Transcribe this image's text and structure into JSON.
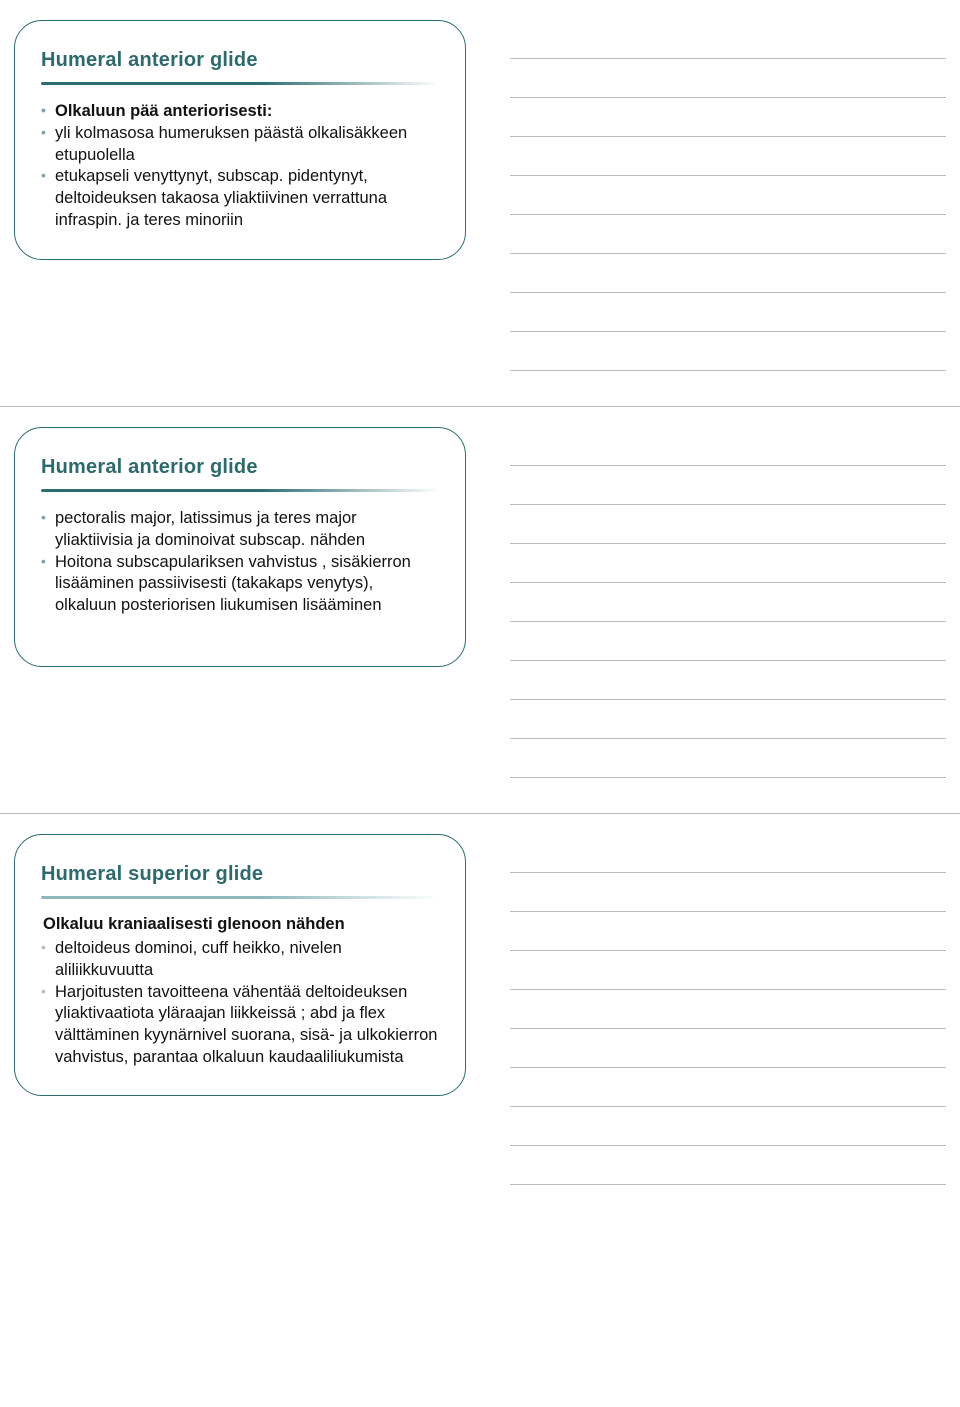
{
  "slides": [
    {
      "title": "Humeral anterior glide",
      "divider_color": "#2b6d72",
      "bullet_color": "#7aa4a8",
      "sub_head": null,
      "items": [
        {
          "text": "Olkaluun pää anteriorisesti:",
          "bold": true
        },
        {
          "text": "yli kolmasosa humeruksen päästä olkalisäkkeen etupuolella",
          "bold": false
        },
        {
          "text": "etukapseli venyttynyt, subscap. pidentynyt, deltoideuksen takaosa yliaktiivinen verrattuna infraspin. ja teres minoriin",
          "bold": false
        }
      ]
    },
    {
      "title": "Humeral anterior glide",
      "divider_color": "#2b6d72",
      "bullet_color": "#7aa4a8",
      "sub_head": null,
      "items": [
        {
          "text": "pectoralis major, latissimus ja teres major yliaktiivisia ja dominoivat subscap. nähden",
          "bold": false
        },
        {
          "text": "Hoitona subscapulariksen vahvistus , sisäkierron lisääminen passiivisesti (takakaps venytys), olkaluun posteriorisen liukumisen lisääminen",
          "bold": false
        }
      ]
    },
    {
      "title": "Humeral superior glide",
      "divider_color": "#8cb8bb",
      "bullet_color": "#c2b8c8",
      "sub_head": "Olkaluu kraniaalisesti glenoon nähden",
      "items": [
        {
          "text": "deltoideus dominoi, cuff heikko, nivelen aliliikkuvuutta",
          "bold": false
        },
        {
          "text": "Harjoitusten tavoitteena vähentää deltoideuksen yliaktivaatiota yläraajan liikkeissä ; abd ja flex välttäminen kyynärnivel suorana, sisä- ja ulkokierron vahvistus, parantaa olkaluun kaudaaliliukumista",
          "bold": false
        }
      ]
    }
  ],
  "note_line_count": 9,
  "title_color": "#2d6a6e"
}
